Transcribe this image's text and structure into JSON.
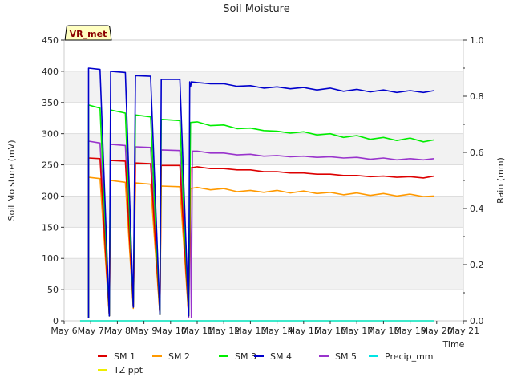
{
  "chart_data": {
    "type": "line",
    "title": "Soil Moisture",
    "xlabel": "Time",
    "ylabel": "Soil Moisture (mV)",
    "y2label": "Rain (mm)",
    "station_label": "VR_met",
    "x_ticks": [
      "May 6",
      "May 7",
      "May 8",
      "May 9",
      "May 10",
      "May 11",
      "May 12",
      "May 13",
      "May 14",
      "May 15",
      "May 16",
      "May 17",
      "May 18",
      "May 19",
      "May 20",
      "May 21"
    ],
    "x_range": [
      6,
      21
    ],
    "ylim": [
      0,
      450
    ],
    "y_ticks": [
      0,
      50,
      100,
      150,
      200,
      250,
      300,
      350,
      400,
      450
    ],
    "y2lim": [
      0,
      1.0
    ],
    "y2_ticks": [
      "0.0",
      "0.2",
      "0.4",
      "0.6",
      "0.8",
      "1.0"
    ],
    "y2_tick_values": [
      0,
      0.2,
      0.4,
      0.6,
      0.8,
      1.0
    ],
    "grid": true,
    "legend_position": "bottom",
    "series": [
      {
        "name": "SM 1",
        "color": "#dd0000",
        "axis": "left",
        "points": [
          [
            6.92,
            5
          ],
          [
            6.92,
            261
          ],
          [
            7.35,
            260
          ],
          [
            7.7,
            8
          ],
          [
            7.75,
            257
          ],
          [
            8.3,
            256
          ],
          [
            8.6,
            22
          ],
          [
            8.68,
            253
          ],
          [
            9.25,
            252
          ],
          [
            9.6,
            10
          ],
          [
            9.65,
            249
          ],
          [
            10.35,
            249
          ],
          [
            10.68,
            8
          ],
          [
            10.75,
            245
          ],
          [
            11.0,
            247
          ],
          [
            11.5,
            244
          ],
          [
            12.0,
            244
          ],
          [
            12.5,
            242
          ],
          [
            13.0,
            242
          ],
          [
            13.5,
            239
          ],
          [
            14.0,
            239
          ],
          [
            14.5,
            237
          ],
          [
            15.0,
            237
          ],
          [
            15.5,
            235
          ],
          [
            16.0,
            235
          ],
          [
            16.5,
            233
          ],
          [
            17.0,
            233
          ],
          [
            17.5,
            231
          ],
          [
            18.0,
            232
          ],
          [
            18.5,
            230
          ],
          [
            19.0,
            231
          ],
          [
            19.5,
            229
          ],
          [
            19.9,
            232
          ]
        ]
      },
      {
        "name": "SM 2",
        "color": "#ff9900",
        "axis": "left",
        "points": [
          [
            6.92,
            5
          ],
          [
            6.92,
            230
          ],
          [
            7.35,
            228
          ],
          [
            7.7,
            8
          ],
          [
            7.75,
            225
          ],
          [
            8.3,
            222
          ],
          [
            8.6,
            20
          ],
          [
            8.68,
            221
          ],
          [
            9.25,
            219
          ],
          [
            9.6,
            10
          ],
          [
            9.65,
            216
          ],
          [
            10.35,
            215
          ],
          [
            10.68,
            8
          ],
          [
            10.75,
            212
          ],
          [
            11.0,
            214
          ],
          [
            11.5,
            210
          ],
          [
            12.0,
            212
          ],
          [
            12.5,
            207
          ],
          [
            13.0,
            209
          ],
          [
            13.5,
            206
          ],
          [
            14.0,
            209
          ],
          [
            14.5,
            205
          ],
          [
            15.0,
            208
          ],
          [
            15.5,
            204
          ],
          [
            16.0,
            206
          ],
          [
            16.5,
            202
          ],
          [
            17.0,
            205
          ],
          [
            17.5,
            201
          ],
          [
            18.0,
            204
          ],
          [
            18.5,
            200
          ],
          [
            19.0,
            203
          ],
          [
            19.5,
            199
          ],
          [
            19.9,
            200
          ]
        ]
      },
      {
        "name": "SM 3",
        "color": "#00ee00",
        "axis": "left",
        "points": [
          [
            6.92,
            5
          ],
          [
            6.92,
            346
          ],
          [
            7.35,
            341
          ],
          [
            7.7,
            8
          ],
          [
            7.75,
            338
          ],
          [
            8.3,
            333
          ],
          [
            8.6,
            22
          ],
          [
            8.68,
            330
          ],
          [
            9.25,
            327
          ],
          [
            9.6,
            10
          ],
          [
            9.65,
            323
          ],
          [
            10.35,
            321
          ],
          [
            10.68,
            8
          ],
          [
            10.75,
            318
          ],
          [
            11.0,
            319
          ],
          [
            11.5,
            313
          ],
          [
            12.0,
            314
          ],
          [
            12.5,
            308
          ],
          [
            13.0,
            309
          ],
          [
            13.5,
            305
          ],
          [
            14.0,
            304
          ],
          [
            14.5,
            301
          ],
          [
            15.0,
            303
          ],
          [
            15.5,
            298
          ],
          [
            16.0,
            300
          ],
          [
            16.5,
            294
          ],
          [
            17.0,
            297
          ],
          [
            17.5,
            291
          ],
          [
            18.0,
            294
          ],
          [
            18.5,
            289
          ],
          [
            19.0,
            293
          ],
          [
            19.5,
            287
          ],
          [
            19.9,
            290
          ]
        ]
      },
      {
        "name": "SM 4",
        "color": "#0000cc",
        "axis": "left",
        "points": [
          [
            6.92,
            5
          ],
          [
            6.92,
            405
          ],
          [
            7.35,
            403
          ],
          [
            7.7,
            8
          ],
          [
            7.75,
            400
          ],
          [
            8.3,
            398
          ],
          [
            8.6,
            22
          ],
          [
            8.68,
            393
          ],
          [
            9.25,
            392
          ],
          [
            9.6,
            10
          ],
          [
            9.65,
            387
          ],
          [
            10.35,
            387
          ],
          [
            10.68,
            8
          ],
          [
            10.72,
            383
          ],
          [
            10.75,
            375
          ],
          [
            10.78,
            383
          ],
          [
            11.0,
            382
          ],
          [
            11.5,
            380
          ],
          [
            12.0,
            380
          ],
          [
            12.5,
            376
          ],
          [
            13.0,
            377
          ],
          [
            13.5,
            373
          ],
          [
            14.0,
            375
          ],
          [
            14.5,
            372
          ],
          [
            15.0,
            374
          ],
          [
            15.5,
            370
          ],
          [
            16.0,
            373
          ],
          [
            16.5,
            368
          ],
          [
            17.0,
            371
          ],
          [
            17.5,
            367
          ],
          [
            18.0,
            370
          ],
          [
            18.5,
            366
          ],
          [
            19.0,
            369
          ],
          [
            19.5,
            366
          ],
          [
            19.9,
            369
          ]
        ]
      },
      {
        "name": "SM 5",
        "color": "#9933cc",
        "axis": "left",
        "points": [
          [
            6.92,
            5
          ],
          [
            6.92,
            288
          ],
          [
            7.35,
            285
          ],
          [
            7.7,
            8
          ],
          [
            7.75,
            283
          ],
          [
            8.3,
            281
          ],
          [
            8.6,
            22
          ],
          [
            8.68,
            279
          ],
          [
            9.25,
            278
          ],
          [
            9.6,
            10
          ],
          [
            9.65,
            274
          ],
          [
            10.35,
            273
          ],
          [
            10.68,
            5
          ],
          [
            10.72,
            272
          ],
          [
            10.78,
            5
          ],
          [
            10.82,
            272
          ],
          [
            11.0,
            272
          ],
          [
            11.5,
            269
          ],
          [
            12.0,
            269
          ],
          [
            12.5,
            266
          ],
          [
            13.0,
            267
          ],
          [
            13.5,
            264
          ],
          [
            14.0,
            265
          ],
          [
            14.5,
            263
          ],
          [
            15.0,
            264
          ],
          [
            15.5,
            262
          ],
          [
            16.0,
            263
          ],
          [
            16.5,
            261
          ],
          [
            17.0,
            262
          ],
          [
            17.5,
            259
          ],
          [
            18.0,
            261
          ],
          [
            18.5,
            258
          ],
          [
            19.0,
            260
          ],
          [
            19.5,
            258
          ],
          [
            19.9,
            260
          ]
        ]
      },
      {
        "name": "Precip_mm",
        "color": "#00e5e5",
        "axis": "right",
        "points": [
          [
            6.6,
            0
          ],
          [
            19.9,
            0
          ]
        ]
      },
      {
        "name": "TZ ppt",
        "color": "#eeee00",
        "axis": "right",
        "points": [
          [
            6.6,
            0
          ],
          [
            19.9,
            0
          ]
        ]
      }
    ]
  }
}
